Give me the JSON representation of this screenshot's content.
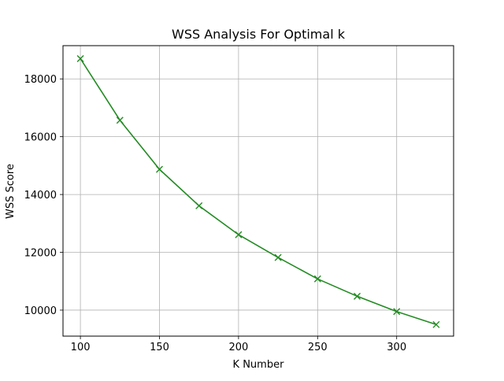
{
  "chart_data": {
    "type": "line",
    "title": "WSS Analysis For Optimal k",
    "xlabel": "K Number",
    "ylabel": "WSS Score",
    "x": [
      100,
      125,
      150,
      175,
      200,
      225,
      250,
      275,
      300,
      325
    ],
    "series": [
      {
        "values": [
          18700,
          16570,
          14870,
          13610,
          12610,
          11820,
          11080,
          10480,
          9950,
          9500
        ],
        "color": "#228b22",
        "marker": "x"
      }
    ],
    "xlim": [
      89,
      336
    ],
    "ylim": [
      9100,
      19150
    ],
    "xticks": [
      100,
      150,
      200,
      250,
      300
    ],
    "yticks": [
      10000,
      12000,
      14000,
      16000,
      18000
    ],
    "grid": true,
    "legend": "none"
  }
}
